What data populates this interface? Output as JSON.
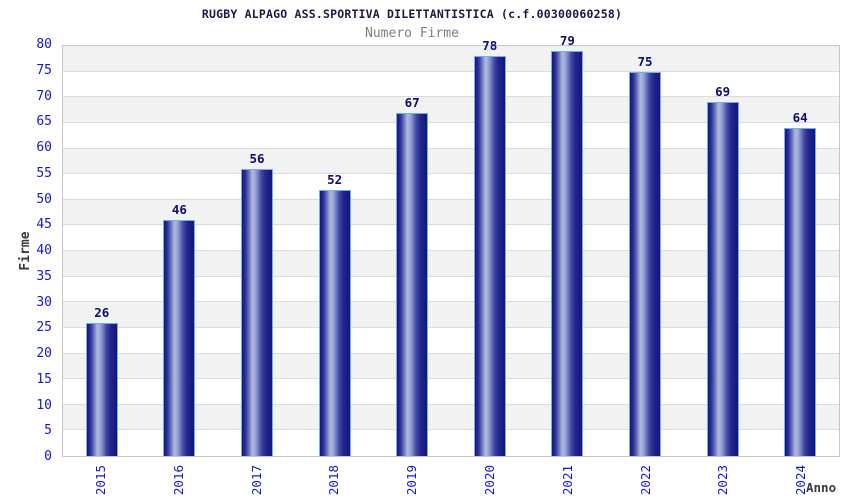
{
  "chart_data": {
    "type": "bar",
    "title": "RUGBY ALPAGO ASS.SPORTIVA DILETTANTISTICA (c.f.00300060258)",
    "subtitle": "Numero Firme",
    "xlabel": "Anno",
    "ylabel": "Firme",
    "categories": [
      "2015",
      "2016",
      "2017",
      "2018",
      "2019",
      "2020",
      "2021",
      "2022",
      "2023",
      "2024"
    ],
    "values": [
      26,
      46,
      56,
      52,
      67,
      78,
      79,
      75,
      69,
      64
    ],
    "ylim": [
      0,
      80
    ],
    "ytick_step": 5,
    "grid": "horizontal-bands",
    "legend_position": "none",
    "bar_value_labels_shown": true
  },
  "colors": {
    "title_text": "#1a1a42",
    "subtitle_text": "#7d7d7d",
    "axis_title_text": "#3a3a3a",
    "tick_text": "#1717cf",
    "value_text": "#0e0e72",
    "bar_dark": "#14147c",
    "bar_light": "#aeb8e0",
    "bar_border": "#6fb0f2",
    "band_gray": "#f2f2f2",
    "band_white": "#ffffff",
    "grid": "#dcdcdc",
    "plot_border": "#c6c6c6",
    "background": "#ffffff"
  }
}
